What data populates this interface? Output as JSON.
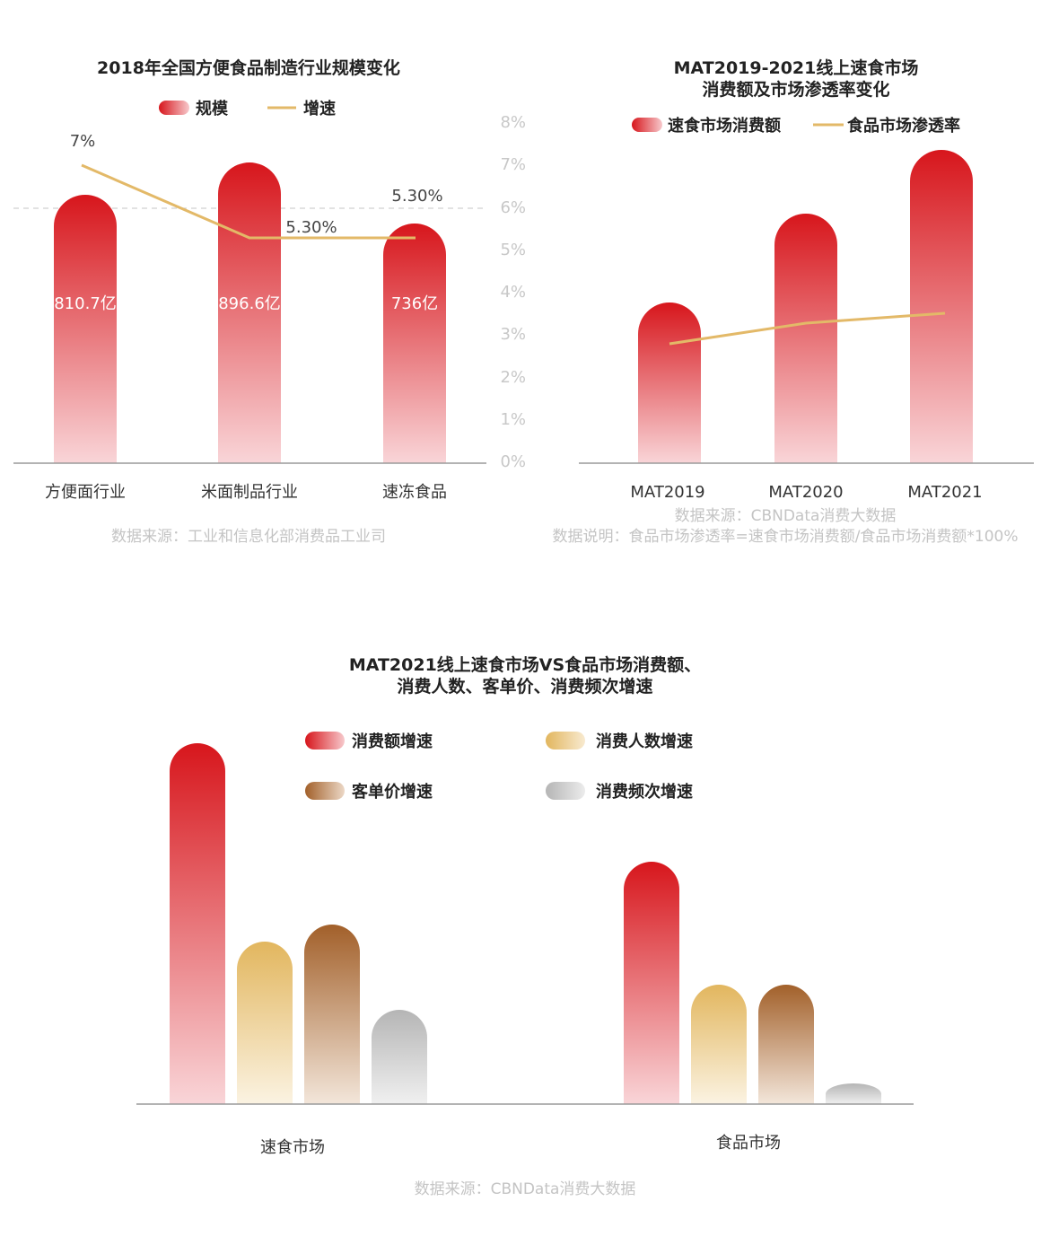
{
  "chart_data": [
    {
      "type": "bar",
      "title": "2018年全国方便食品制造行业规模变化",
      "legend": [
        "规模",
        "增速"
      ],
      "categories": [
        "方便面行业",
        "米面制品行业",
        "速冻食品"
      ],
      "series": [
        {
          "name": "规模",
          "type": "bar",
          "values": [
            810.7,
            896.6,
            736
          ],
          "value_labels": [
            "810.7亿",
            "896.6亿",
            "736亿"
          ]
        },
        {
          "name": "增速",
          "type": "line",
          "values": [
            7,
            5.3,
            5.3
          ],
          "value_labels": [
            "7%",
            "5.30%",
            "5.30%"
          ]
        }
      ],
      "y2_ticks": [
        "0%",
        "1%",
        "2%",
        "3%",
        "4%",
        "5%",
        "6%",
        "7%",
        "8%"
      ],
      "y2lim": [
        0,
        8
      ],
      "reference_line": 6,
      "source": "数据来源：工业和信息化部消费品工业司"
    },
    {
      "type": "bar",
      "title_lines": [
        "MAT2019-2021线上速食市场",
        "消费额及市场渗透率变化"
      ],
      "legend": [
        "速食市场消费额",
        "食品市场渗透率"
      ],
      "categories": [
        "MAT2019",
        "MAT2020",
        "MAT2021"
      ],
      "series": [
        {
          "name": "速食市场消费额",
          "type": "bar",
          "values": [
            0.5,
            0.75,
            1.0
          ]
        },
        {
          "name": "食品市场渗透率",
          "type": "line",
          "values": [
            2.75,
            3.25,
            3.5
          ]
        }
      ],
      "source": "数据来源：CBNData消费大数据",
      "note": "数据说明：食品市场渗透率=速食市场消费额/食品市场消费额*100%"
    },
    {
      "type": "bar",
      "title_lines": [
        "MAT2021线上速食市场VS食品市场消费额、",
        "消费人数、客单价、消费频次增速"
      ],
      "categories": [
        "速食市场",
        "食品市场"
      ],
      "series": [
        {
          "name": "消费额增速",
          "color": "#d7161c",
          "values": [
            1.0,
            0.67
          ]
        },
        {
          "name": "消费人数增速",
          "color": "#e2b65e",
          "values": [
            0.45,
            0.33
          ]
        },
        {
          "name": "客单价增速",
          "color": "#a2602a",
          "values": [
            0.5,
            0.33
          ]
        },
        {
          "name": "消费频次增速",
          "color": "#b5b5b5",
          "values": [
            0.26,
            0.06
          ]
        }
      ],
      "source": "数据来源：CBNData消费大数据"
    }
  ],
  "colors": {
    "red": "#d7161c",
    "line": "#e3b968",
    "axis": "#9a9a9a",
    "muted": "#c4c4c4"
  }
}
